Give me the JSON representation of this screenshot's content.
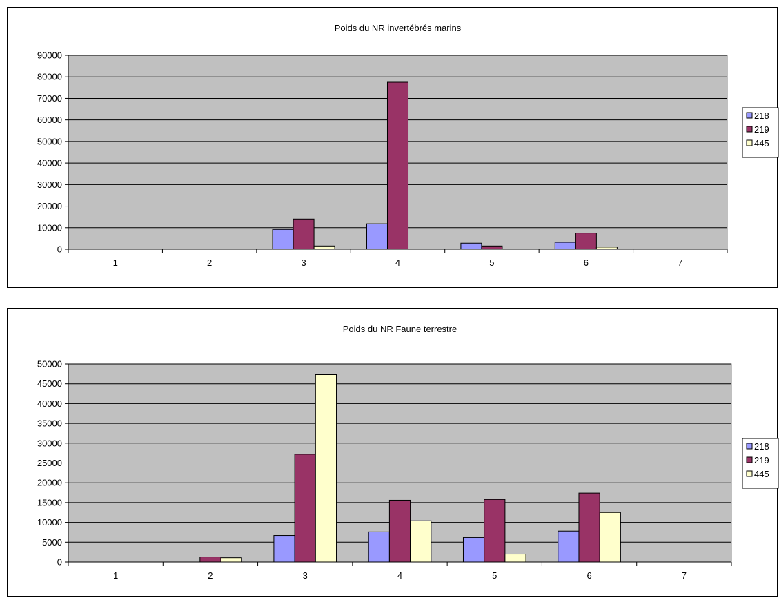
{
  "colors": {
    "plot_bg": "#c0c0c0",
    "grid": "#000000",
    "series_218": "#9999ff",
    "series_219": "#993366",
    "series_445": "#ffffcc"
  },
  "chart_data": [
    {
      "type": "bar",
      "title": "Poids du NR invertébrés marins",
      "xlabel": "",
      "ylabel": "",
      "categories": [
        "1",
        "2",
        "3",
        "4",
        "5",
        "6",
        "7"
      ],
      "ylim": [
        0,
        90000
      ],
      "yticks": [
        "0",
        "10000",
        "20000",
        "30000",
        "40000",
        "50000",
        "60000",
        "70000",
        "80000",
        "90000"
      ],
      "grid": true,
      "legend": "right",
      "series": [
        {
          "name": "218",
          "color": "#9999ff",
          "values": [
            0,
            0,
            9200,
            11800,
            2800,
            3200,
            0
          ]
        },
        {
          "name": "219",
          "color": "#993366",
          "values": [
            0,
            0,
            14000,
            77500,
            1500,
            7500,
            0
          ]
        },
        {
          "name": "445",
          "color": "#ffffcc",
          "values": [
            0,
            0,
            1500,
            0,
            0,
            1000,
            0
          ]
        }
      ]
    },
    {
      "type": "bar",
      "title": "Poids du NR Faune terrestre",
      "xlabel": "",
      "ylabel": "",
      "categories": [
        "1",
        "2",
        "3",
        "4",
        "5",
        "6",
        "7"
      ],
      "ylim": [
        0,
        50000
      ],
      "yticks": [
        "0",
        "5000",
        "10000",
        "15000",
        "20000",
        "25000",
        "30000",
        "35000",
        "40000",
        "45000",
        "50000"
      ],
      "grid": true,
      "legend": "right",
      "series": [
        {
          "name": "218",
          "color": "#9999ff",
          "values": [
            0,
            0,
            6700,
            7600,
            6200,
            7800,
            0
          ]
        },
        {
          "name": "219",
          "color": "#993366",
          "values": [
            0,
            1300,
            27200,
            15600,
            15800,
            17400,
            0
          ]
        },
        {
          "name": "445",
          "color": "#ffffcc",
          "values": [
            0,
            1100,
            47300,
            10400,
            2000,
            12500,
            0
          ]
        }
      ]
    }
  ]
}
